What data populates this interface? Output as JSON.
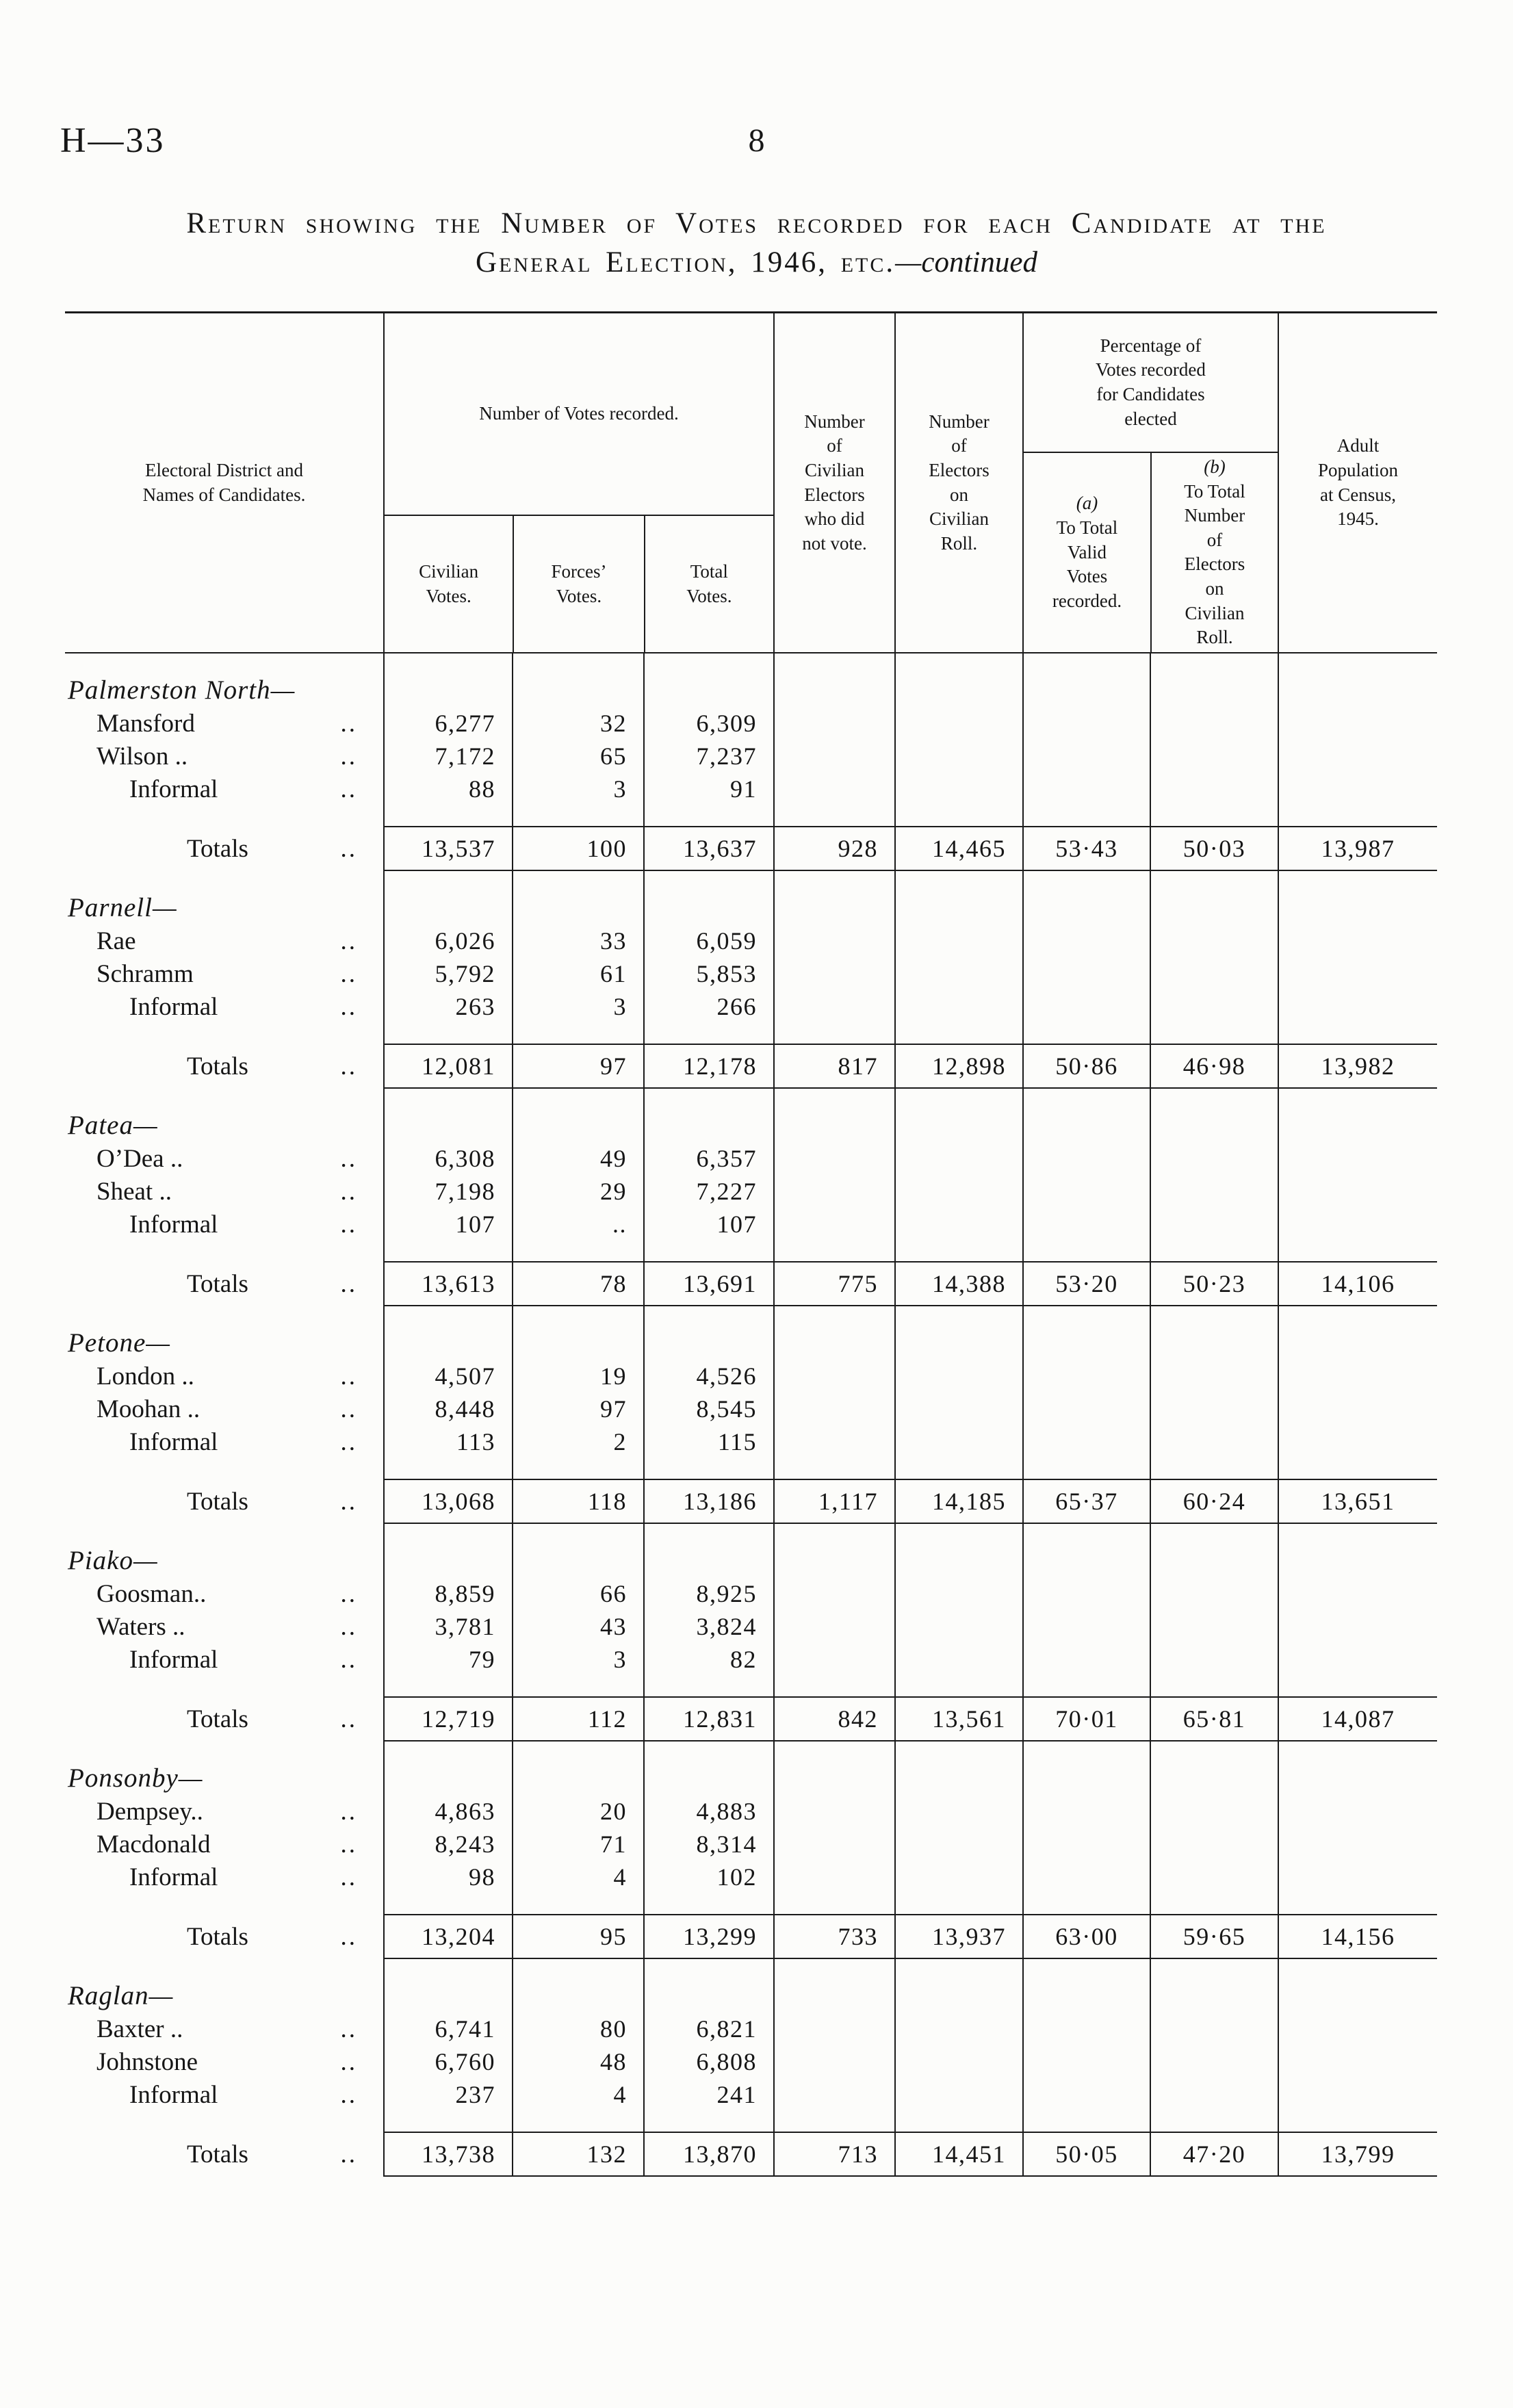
{
  "page": {
    "doc_ref": "H—33",
    "page_number": "8",
    "title_line1": "Return showing the Number of Votes recorded for each Candidate at the",
    "title_line2_sc": "General Election, 1946, etc.",
    "title_line2_it": "—continued"
  },
  "table": {
    "headers": {
      "col_district": "Electoral District and\nNames of Candidates.",
      "group_votes": "Number of Votes recorded.",
      "col_civilian": "Civilian\nVotes.",
      "col_forces": "Forces’\nVotes.",
      "col_total": "Total\nVotes.",
      "col_not_vote": "Number\nof\nCivilian\nElectors\nwho did\nnot vote.",
      "col_roll": "Number\nof\nElectors\non\nCivilian\nRoll.",
      "group_pct": "Percentage of\nVotes recorded\nfor Candidates\nelected",
      "col_pct_a_tag": "(a)",
      "col_pct_a_text": "To Total\nValid\nVotes\nrecorded.",
      "col_pct_b_tag": "(b)",
      "col_pct_b_text": "To Total\nNumber\nof\nElectors\non\nCivilian\nRoll.",
      "col_adult": "Adult\nPopulation\nat Census,\n1945."
    },
    "totals_label": "Totals",
    "leader": "..",
    "sections": [
      {
        "district": "Palmerston North—",
        "candidates": [
          {
            "name": "Mansford",
            "civilian": "6,277",
            "forces": "32",
            "total": "6,309"
          },
          {
            "name": "Wilson ..",
            "civilian": "7,172",
            "forces": "65",
            "total": "7,237"
          },
          {
            "name": "Informal",
            "civilian": "88",
            "forces": "3",
            "total": "91"
          }
        ],
        "totals": {
          "civilian": "13,537",
          "forces": "100",
          "total": "13,637",
          "not_vote": "928",
          "roll": "14,465",
          "pct_a": "53·43",
          "pct_b": "50·03",
          "adult": "13,987"
        }
      },
      {
        "district": "Parnell—",
        "candidates": [
          {
            "name": "Rae",
            "civilian": "6,026",
            "forces": "33",
            "total": "6,059"
          },
          {
            "name": "Schramm",
            "civilian": "5,792",
            "forces": "61",
            "total": "5,853"
          },
          {
            "name": "Informal",
            "civilian": "263",
            "forces": "3",
            "total": "266"
          }
        ],
        "totals": {
          "civilian": "12,081",
          "forces": "97",
          "total": "12,178",
          "not_vote": "817",
          "roll": "12,898",
          "pct_a": "50·86",
          "pct_b": "46·98",
          "adult": "13,982"
        }
      },
      {
        "district": "Patea—",
        "candidates": [
          {
            "name": "O’Dea ..",
            "civilian": "6,308",
            "forces": "49",
            "total": "6,357"
          },
          {
            "name": "Sheat ..",
            "civilian": "7,198",
            "forces": "29",
            "total": "7,227"
          },
          {
            "name": "Informal",
            "civilian": "107",
            "forces": "..",
            "total": "107"
          }
        ],
        "totals": {
          "civilian": "13,613",
          "forces": "78",
          "total": "13,691",
          "not_vote": "775",
          "roll": "14,388",
          "pct_a": "53·20",
          "pct_b": "50·23",
          "adult": "14,106"
        }
      },
      {
        "district": "Petone—",
        "candidates": [
          {
            "name": "London ..",
            "civilian": "4,507",
            "forces": "19",
            "total": "4,526"
          },
          {
            "name": "Moohan ..",
            "civilian": "8,448",
            "forces": "97",
            "total": "8,545"
          },
          {
            "name": "Informal",
            "civilian": "113",
            "forces": "2",
            "total": "115"
          }
        ],
        "totals": {
          "civilian": "13,068",
          "forces": "118",
          "total": "13,186",
          "not_vote": "1,117",
          "roll": "14,185",
          "pct_a": "65·37",
          "pct_b": "60·24",
          "adult": "13,651"
        }
      },
      {
        "district": "Piako—",
        "candidates": [
          {
            "name": "Goosman..",
            "civilian": "8,859",
            "forces": "66",
            "total": "8,925"
          },
          {
            "name": "Waters ..",
            "civilian": "3,781",
            "forces": "43",
            "total": "3,824"
          },
          {
            "name": "Informal",
            "civilian": "79",
            "forces": "3",
            "total": "82"
          }
        ],
        "totals": {
          "civilian": "12,719",
          "forces": "112",
          "total": "12,831",
          "not_vote": "842",
          "roll": "13,561",
          "pct_a": "70·01",
          "pct_b": "65·81",
          "adult": "14,087"
        }
      },
      {
        "district": "Ponsonby—",
        "candidates": [
          {
            "name": "Dempsey..",
            "civilian": "4,863",
            "forces": "20",
            "total": "4,883"
          },
          {
            "name": "Macdonald",
            "civilian": "8,243",
            "forces": "71",
            "total": "8,314"
          },
          {
            "name": "Informal",
            "civilian": "98",
            "forces": "4",
            "total": "102"
          }
        ],
        "totals": {
          "civilian": "13,204",
          "forces": "95",
          "total": "13,299",
          "not_vote": "733",
          "roll": "13,937",
          "pct_a": "63·00",
          "pct_b": "59·65",
          "adult": "14,156"
        }
      },
      {
        "district": "Raglan—",
        "candidates": [
          {
            "name": "Baxter ..",
            "civilian": "6,741",
            "forces": "80",
            "total": "6,821"
          },
          {
            "name": "Johnstone",
            "civilian": "6,760",
            "forces": "48",
            "total": "6,808"
          },
          {
            "name": "Informal",
            "civilian": "237",
            "forces": "4",
            "total": "241"
          }
        ],
        "totals": {
          "civilian": "13,738",
          "forces": "132",
          "total": "13,870",
          "not_vote": "713",
          "roll": "14,451",
          "pct_a": "50·05",
          "pct_b": "47·20",
          "adult": "13,799"
        }
      }
    ]
  }
}
